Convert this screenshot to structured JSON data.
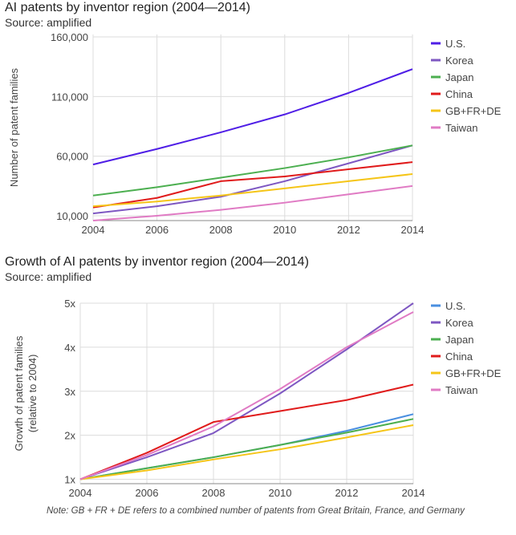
{
  "chart_data": [
    {
      "type": "line",
      "title": "AI patents by inventor region (2004—2014)",
      "subtitle": "Source: amplified",
      "xlabel": "",
      "ylabel": "Number of patent families",
      "x": [
        2004,
        2006,
        2008,
        2010,
        2012,
        2014
      ],
      "xlim": [
        2004,
        2014
      ],
      "ylim": [
        6000,
        162000
      ],
      "yticks": [
        10000,
        60000,
        110000,
        160000
      ],
      "ytick_labels": [
        "10,000",
        "60,000",
        "110,000",
        "160,000"
      ],
      "xtick_labels": [
        "2004",
        "2006",
        "2008",
        "2010",
        "2012",
        "2014"
      ],
      "grid": true,
      "legend": "right",
      "series": [
        {
          "name": "U.S.",
          "color": "#4f1ee6",
          "values": [
            53000,
            66000,
            80000,
            95000,
            113000,
            133000
          ]
        },
        {
          "name": "Korea",
          "color": "#7e57c2",
          "values": [
            12000,
            18000,
            26000,
            39000,
            54000,
            69000
          ]
        },
        {
          "name": "Japan",
          "color": "#4caf50",
          "values": [
            27000,
            34000,
            42000,
            50000,
            59000,
            69000
          ]
        },
        {
          "name": "China",
          "color": "#e01b1b",
          "values": [
            17000,
            25000,
            39000,
            43000,
            49000,
            55000
          ]
        },
        {
          "name": "GB+FR+DE",
          "color": "#f5c518",
          "values": [
            18000,
            22000,
            27000,
            33000,
            39000,
            45000
          ]
        },
        {
          "name": "Taiwan",
          "color": "#e07bc4",
          "values": [
            6000,
            10000,
            15000,
            21000,
            28000,
            35000
          ]
        }
      ]
    },
    {
      "type": "line",
      "title": "Growth of AI patents by inventor region (2004—2014)",
      "subtitle": "Source: amplified",
      "xlabel": "",
      "ylabel": "Growth of patent families",
      "ylabel2": "(relative to 2004)",
      "x": [
        2004,
        2006,
        2008,
        2010,
        2012,
        2014
      ],
      "xlim": [
        2004,
        2014
      ],
      "ylim": [
        0.9,
        5.0
      ],
      "yticks": [
        1,
        2,
        3,
        4,
        5
      ],
      "ytick_labels": [
        "1x",
        "2x",
        "3x",
        "4x",
        "5x"
      ],
      "xtick_labels": [
        "2004",
        "2006",
        "2008",
        "2010",
        "2012",
        "2014"
      ],
      "grid": true,
      "legend": "right",
      "series": [
        {
          "name": "U.S.",
          "color": "#4a8fe0",
          "values": [
            1.0,
            1.25,
            1.5,
            1.78,
            2.1,
            2.48
          ]
        },
        {
          "name": "Korea",
          "color": "#7e57c2",
          "values": [
            1.0,
            1.5,
            2.05,
            2.95,
            3.95,
            5.0
          ]
        },
        {
          "name": "Japan",
          "color": "#4caf50",
          "values": [
            1.0,
            1.25,
            1.5,
            1.78,
            2.06,
            2.37
          ]
        },
        {
          "name": "China",
          "color": "#e01b1b",
          "values": [
            1.0,
            1.6,
            2.3,
            2.55,
            2.8,
            3.15
          ]
        },
        {
          "name": "GB+FR+DE",
          "color": "#f5c518",
          "values": [
            1.0,
            1.2,
            1.45,
            1.68,
            1.95,
            2.23
          ]
        },
        {
          "name": "Taiwan",
          "color": "#e07bc4",
          "values": [
            1.0,
            1.55,
            2.2,
            3.05,
            4.0,
            4.8
          ]
        }
      ]
    }
  ],
  "note": "Note: GB + FR + DE refers to a combined number of patents from Great Britain, France, and Germany"
}
